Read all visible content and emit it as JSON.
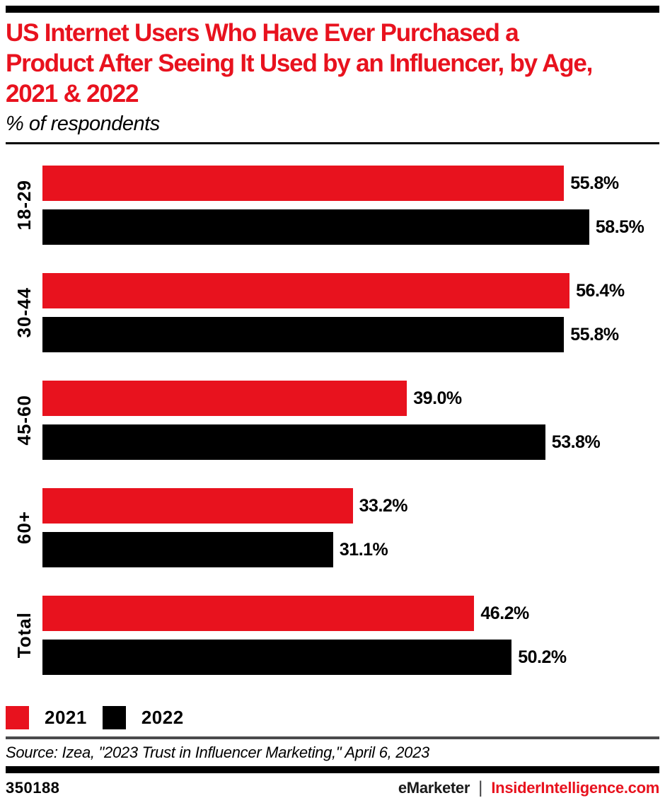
{
  "header": {
    "title_lines": [
      "US Internet Users Who Have Ever Purchased a",
      "Product After Seeing It Used by an Influencer, by Age,",
      "2021 & 2022"
    ],
    "subtitle": "% of respondents"
  },
  "chart_data": {
    "type": "bar",
    "orientation": "horizontal",
    "title": "US Internet Users Who Have Ever Purchased a Product After Seeing It Used by an Influencer, by Age, 2021 & 2022",
    "subtitle": "% of respondents",
    "categories": [
      "18-29",
      "30-44",
      "45-60",
      "60+",
      "Total"
    ],
    "series": [
      {
        "name": "2021",
        "color": "#e8121e",
        "values": [
          55.8,
          56.4,
          39.0,
          33.2,
          46.2
        ]
      },
      {
        "name": "2022",
        "color": "#000000",
        "values": [
          58.5,
          55.8,
          53.8,
          31.1,
          50.2
        ]
      }
    ],
    "value_suffix": "%",
    "xlim": [
      0,
      66
    ],
    "grid": false,
    "value_labels": true,
    "legend_position": "bottom"
  },
  "legend": [
    {
      "label": "2021",
      "color": "#e8121e"
    },
    {
      "label": "2022",
      "color": "#000000"
    }
  ],
  "source": "Source: Izea, \"2023 Trust in Influencer Marketing,\" April 6, 2023",
  "footer": {
    "chart_id": "350188",
    "brand": "eMarketer",
    "separator": "|",
    "site": "InsiderIntelligence.com"
  },
  "colors": {
    "accent_red": "#e8121e",
    "bar_black": "#000000",
    "divider_gray": "#4a4a4c"
  }
}
